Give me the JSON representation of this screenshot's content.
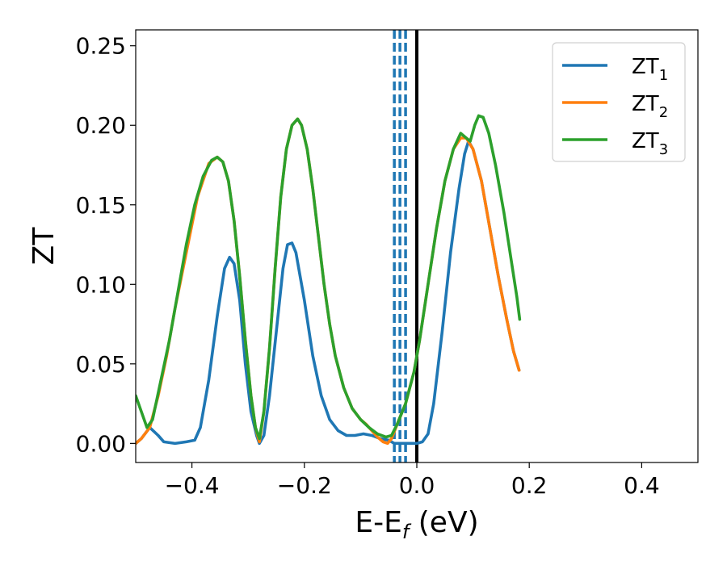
{
  "chart_data": {
    "type": "line",
    "title": "",
    "xlabel": "E-E",
    "xlabel_subscript": "f",
    "xlabel_unit": " (eV)",
    "ylabel": "ZT",
    "xlim": [
      -0.5,
      0.5
    ],
    "ylim": [
      -0.012,
      0.26
    ],
    "grid": false,
    "legend_position": "top-right",
    "x_ticks": [
      -0.4,
      -0.2,
      0.0,
      0.2,
      0.4
    ],
    "x_tick_labels": [
      "−0.4",
      "−0.2",
      "0.0",
      "0.2",
      "0.4"
    ],
    "y_ticks": [
      0.0,
      0.05,
      0.1,
      0.15,
      0.2,
      0.25
    ],
    "y_tick_labels": [
      "0.00",
      "0.05",
      "0.10",
      "0.15",
      "0.20",
      "0.25"
    ],
    "vertical_lines": [
      {
        "x": 0.0,
        "style": "solid",
        "color": "#000000"
      },
      {
        "x": -0.04,
        "style": "dashed",
        "color": "#1f77b4"
      },
      {
        "x": -0.03,
        "style": "dashed",
        "color": "#1f77b4"
      },
      {
        "x": -0.02,
        "style": "dashed",
        "color": "#1f77b4"
      }
    ],
    "series": [
      {
        "name": "ZT",
        "subscript": "1",
        "color": "#1f77b4",
        "points": [
          [
            -0.5,
            0.0
          ],
          [
            -0.49,
            0.003
          ],
          [
            -0.475,
            0.01
          ],
          [
            -0.46,
            0.005
          ],
          [
            -0.45,
            0.001
          ],
          [
            -0.43,
            0.0
          ],
          [
            -0.41,
            0.001
          ],
          [
            -0.395,
            0.002
          ],
          [
            -0.385,
            0.01
          ],
          [
            -0.37,
            0.04
          ],
          [
            -0.355,
            0.08
          ],
          [
            -0.342,
            0.11
          ],
          [
            -0.333,
            0.117
          ],
          [
            -0.325,
            0.113
          ],
          [
            -0.315,
            0.09
          ],
          [
            -0.305,
            0.05
          ],
          [
            -0.295,
            0.02
          ],
          [
            -0.285,
            0.005
          ],
          [
            -0.28,
            0.0
          ],
          [
            -0.272,
            0.005
          ],
          [
            -0.262,
            0.03
          ],
          [
            -0.25,
            0.07
          ],
          [
            -0.238,
            0.11
          ],
          [
            -0.23,
            0.125
          ],
          [
            -0.222,
            0.126
          ],
          [
            -0.215,
            0.12
          ],
          [
            -0.2,
            0.09
          ],
          [
            -0.185,
            0.055
          ],
          [
            -0.17,
            0.03
          ],
          [
            -0.155,
            0.015
          ],
          [
            -0.14,
            0.008
          ],
          [
            -0.125,
            0.005
          ],
          [
            -0.11,
            0.005
          ],
          [
            -0.095,
            0.006
          ],
          [
            -0.08,
            0.005
          ],
          [
            -0.065,
            0.003
          ],
          [
            -0.05,
            0.002
          ],
          [
            -0.04,
            0.0
          ],
          [
            -0.02,
            0.0
          ],
          [
            0.0,
            0.0
          ],
          [
            0.01,
            0.001
          ],
          [
            0.02,
            0.006
          ],
          [
            0.03,
            0.025
          ],
          [
            0.045,
            0.07
          ],
          [
            0.06,
            0.12
          ],
          [
            0.075,
            0.16
          ],
          [
            0.085,
            0.182
          ],
          [
            0.092,
            0.19
          ],
          [
            0.1,
            0.185
          ],
          [
            0.115,
            0.165
          ],
          [
            0.13,
            0.135
          ],
          [
            0.145,
            0.105
          ],
          [
            0.16,
            0.078
          ],
          [
            0.172,
            0.058
          ],
          [
            0.182,
            0.046
          ]
        ]
      },
      {
        "name": "ZT",
        "subscript": "2",
        "color": "#ff7f0e",
        "points": [
          [
            -0.5,
            0.0
          ],
          [
            -0.49,
            0.003
          ],
          [
            -0.475,
            0.01
          ],
          [
            -0.46,
            0.03
          ],
          [
            -0.445,
            0.055
          ],
          [
            -0.43,
            0.085
          ],
          [
            -0.41,
            0.12
          ],
          [
            -0.39,
            0.155
          ],
          [
            -0.37,
            0.176
          ],
          [
            -0.355,
            0.18
          ],
          [
            -0.345,
            0.177
          ],
          [
            -0.335,
            0.165
          ],
          [
            -0.325,
            0.14
          ],
          [
            -0.315,
            0.105
          ],
          [
            -0.305,
            0.065
          ],
          [
            -0.295,
            0.03
          ],
          [
            -0.287,
            0.01
          ],
          [
            -0.28,
            0.001
          ],
          [
            -0.272,
            0.02
          ],
          [
            -0.262,
            0.06
          ],
          [
            -0.252,
            0.11
          ],
          [
            -0.242,
            0.155
          ],
          [
            -0.232,
            0.185
          ],
          [
            -0.222,
            0.2
          ],
          [
            -0.212,
            0.204
          ],
          [
            -0.205,
            0.2
          ],
          [
            -0.195,
            0.185
          ],
          [
            -0.185,
            0.16
          ],
          [
            -0.175,
            0.13
          ],
          [
            -0.165,
            0.1
          ],
          [
            -0.155,
            0.075
          ],
          [
            -0.145,
            0.055
          ],
          [
            -0.13,
            0.035
          ],
          [
            -0.115,
            0.022
          ],
          [
            -0.1,
            0.015
          ],
          [
            -0.09,
            0.012
          ],
          [
            -0.08,
            0.008
          ],
          [
            -0.07,
            0.004
          ],
          [
            -0.06,
            0.001
          ],
          [
            -0.052,
            0.0
          ],
          [
            -0.045,
            0.003
          ],
          [
            -0.035,
            0.012
          ],
          [
            -0.02,
            0.025
          ],
          [
            -0.005,
            0.045
          ],
          [
            0.005,
            0.065
          ],
          [
            0.02,
            0.1
          ],
          [
            0.035,
            0.135
          ],
          [
            0.05,
            0.165
          ],
          [
            0.065,
            0.185
          ],
          [
            0.078,
            0.192
          ],
          [
            0.088,
            0.192
          ],
          [
            0.1,
            0.185
          ],
          [
            0.115,
            0.165
          ],
          [
            0.13,
            0.135
          ],
          [
            0.145,
            0.105
          ],
          [
            0.16,
            0.078
          ],
          [
            0.172,
            0.058
          ],
          [
            0.182,
            0.046
          ]
        ]
      },
      {
        "name": "ZT",
        "subscript": "3",
        "color": "#2ca02c",
        "points": [
          [
            -0.5,
            0.03
          ],
          [
            -0.49,
            0.02
          ],
          [
            -0.48,
            0.01
          ],
          [
            -0.47,
            0.015
          ],
          [
            -0.455,
            0.04
          ],
          [
            -0.44,
            0.065
          ],
          [
            -0.425,
            0.095
          ],
          [
            -0.41,
            0.125
          ],
          [
            -0.395,
            0.15
          ],
          [
            -0.38,
            0.168
          ],
          [
            -0.365,
            0.178
          ],
          [
            -0.355,
            0.18
          ],
          [
            -0.345,
            0.177
          ],
          [
            -0.335,
            0.165
          ],
          [
            -0.325,
            0.14
          ],
          [
            -0.315,
            0.105
          ],
          [
            -0.305,
            0.065
          ],
          [
            -0.295,
            0.03
          ],
          [
            -0.287,
            0.01
          ],
          [
            -0.28,
            0.003
          ],
          [
            -0.272,
            0.02
          ],
          [
            -0.262,
            0.06
          ],
          [
            -0.252,
            0.11
          ],
          [
            -0.242,
            0.155
          ],
          [
            -0.232,
            0.185
          ],
          [
            -0.222,
            0.2
          ],
          [
            -0.212,
            0.204
          ],
          [
            -0.205,
            0.2
          ],
          [
            -0.195,
            0.185
          ],
          [
            -0.185,
            0.16
          ],
          [
            -0.175,
            0.13
          ],
          [
            -0.165,
            0.1
          ],
          [
            -0.155,
            0.075
          ],
          [
            -0.145,
            0.055
          ],
          [
            -0.13,
            0.035
          ],
          [
            -0.115,
            0.022
          ],
          [
            -0.1,
            0.015
          ],
          [
            -0.085,
            0.01
          ],
          [
            -0.07,
            0.006
          ],
          [
            -0.055,
            0.004
          ],
          [
            -0.045,
            0.005
          ],
          [
            -0.035,
            0.012
          ],
          [
            -0.02,
            0.025
          ],
          [
            -0.005,
            0.045
          ],
          [
            0.005,
            0.065
          ],
          [
            0.02,
            0.1
          ],
          [
            0.035,
            0.135
          ],
          [
            0.05,
            0.165
          ],
          [
            0.065,
            0.185
          ],
          [
            0.078,
            0.195
          ],
          [
            0.088,
            0.192
          ],
          [
            0.095,
            0.19
          ],
          [
            0.103,
            0.2
          ],
          [
            0.11,
            0.206
          ],
          [
            0.118,
            0.205
          ],
          [
            0.128,
            0.195
          ],
          [
            0.14,
            0.175
          ],
          [
            0.155,
            0.145
          ],
          [
            0.168,
            0.115
          ],
          [
            0.178,
            0.092
          ],
          [
            0.183,
            0.078
          ]
        ]
      }
    ]
  }
}
